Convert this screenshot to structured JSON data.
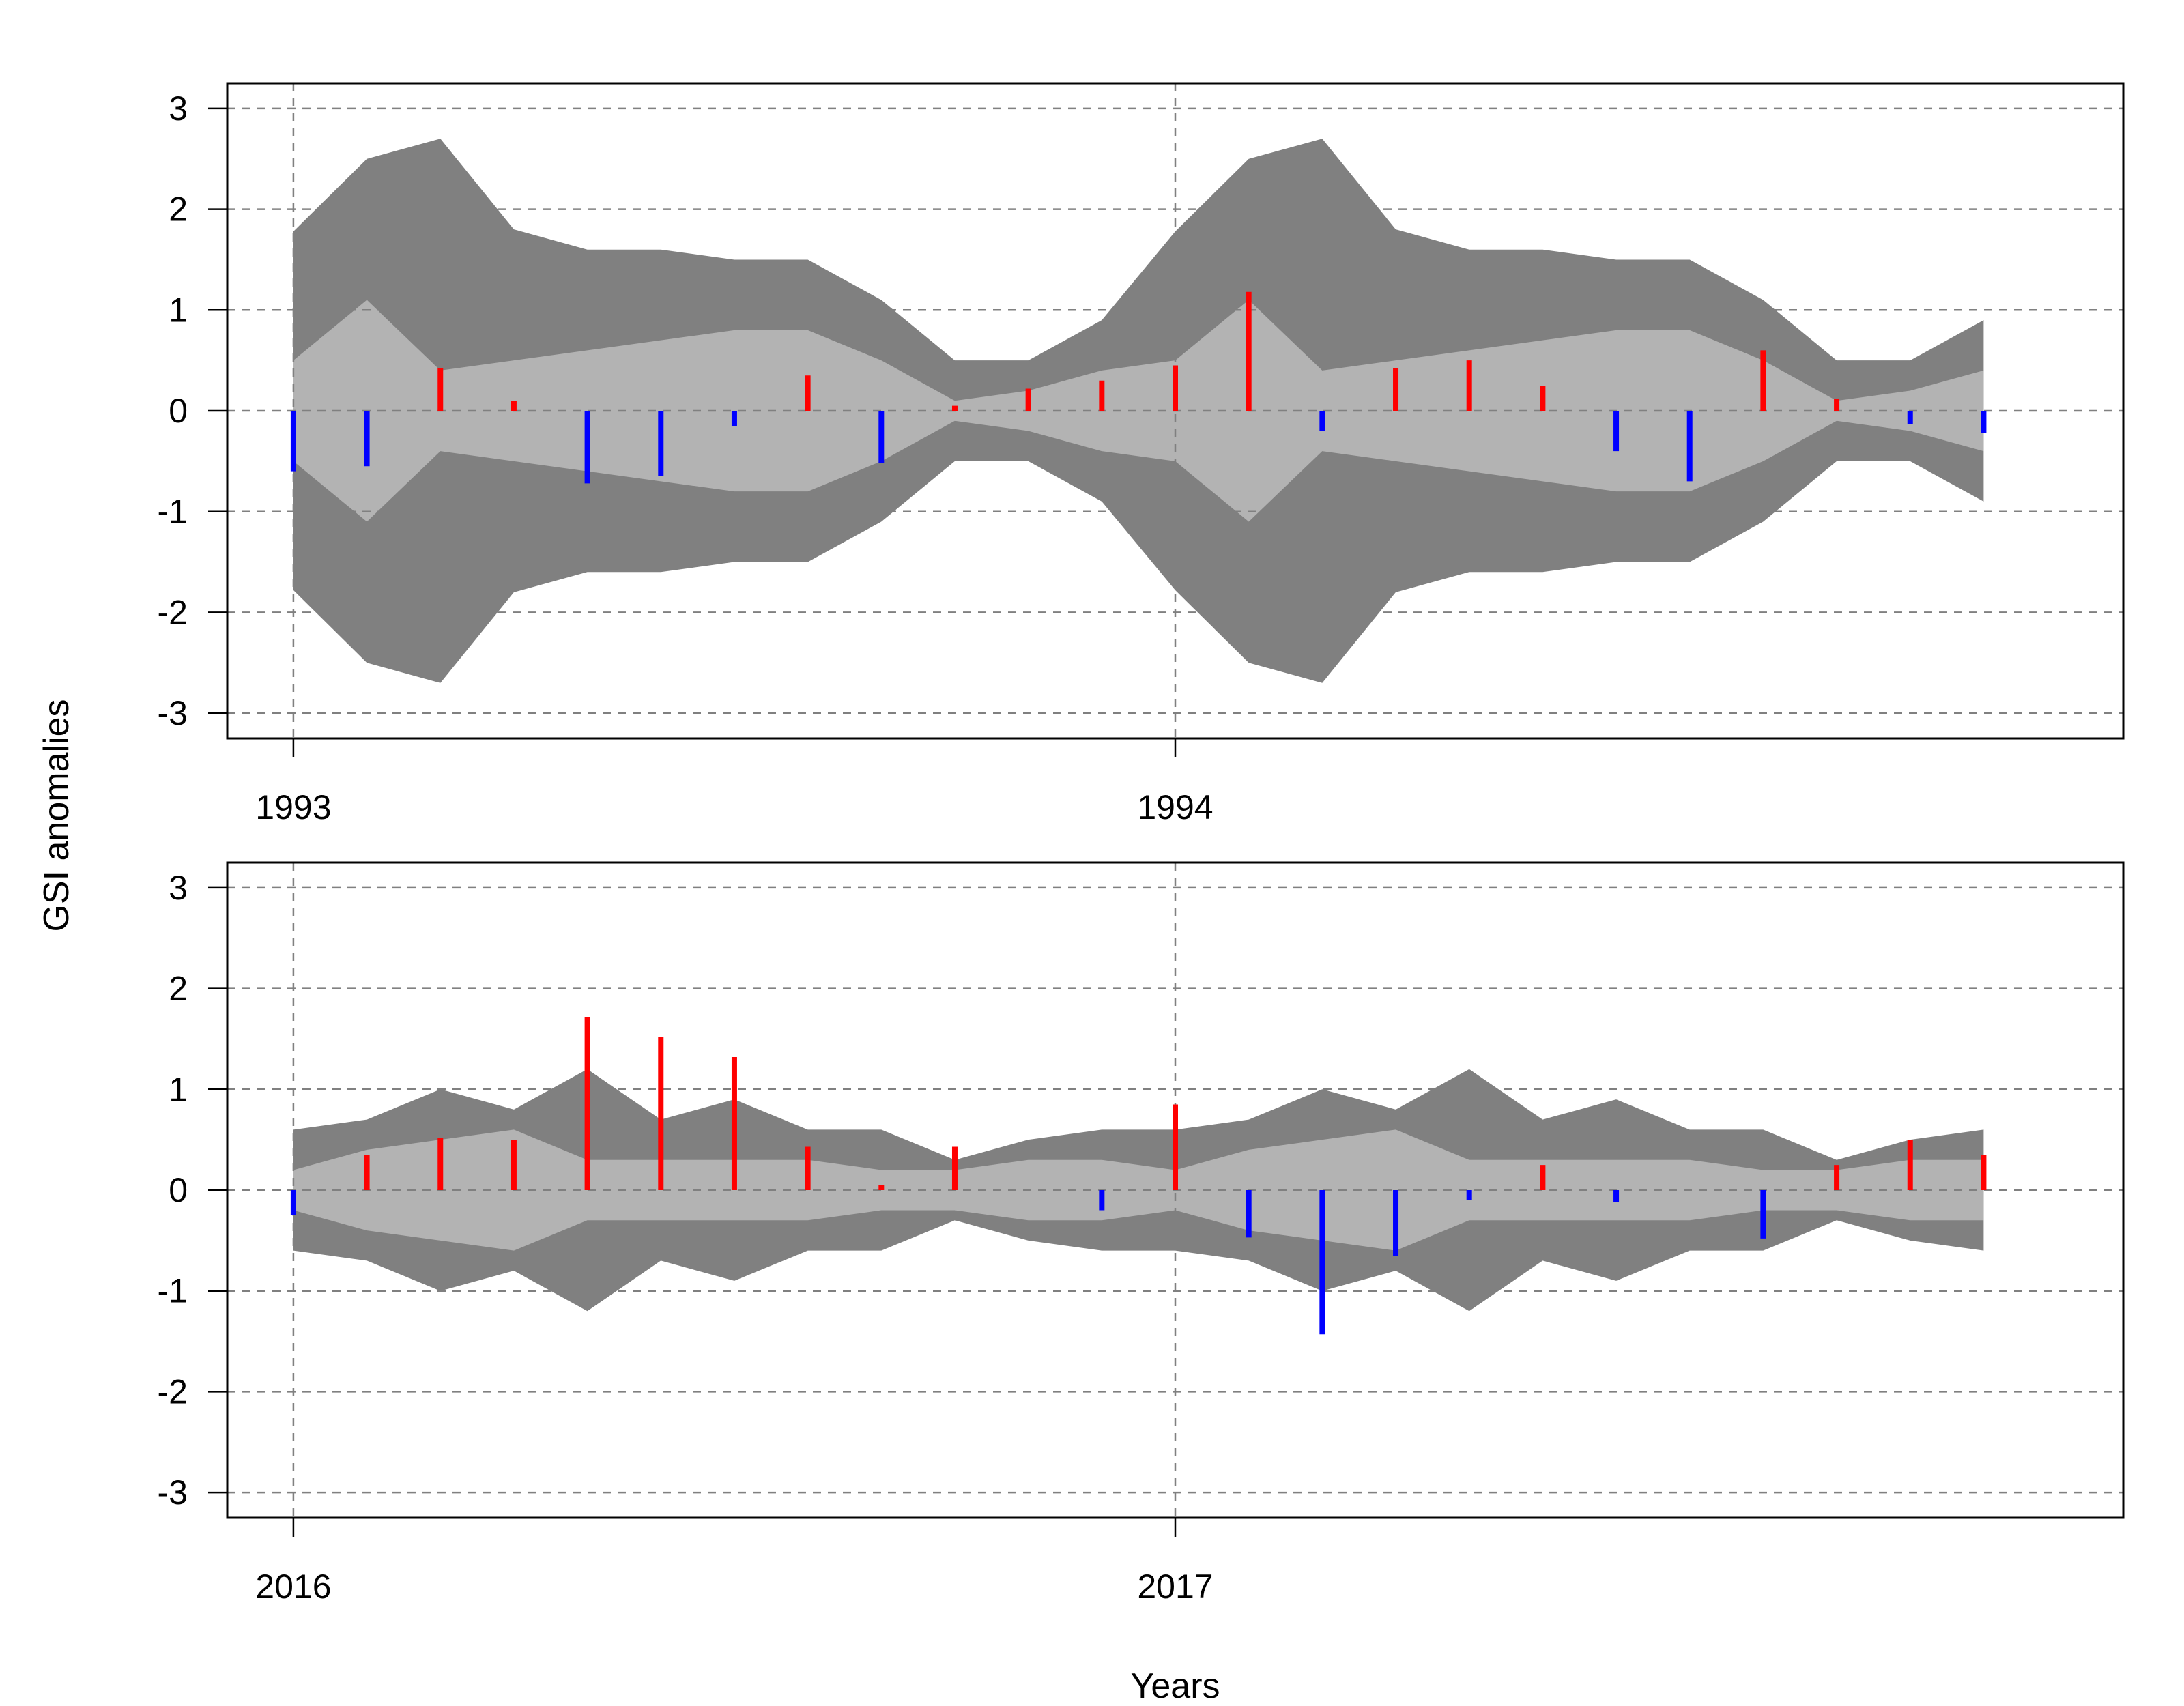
{
  "chart_data": {
    "type": "bar",
    "ylabel": "GSI anomalies",
    "xlabel": "Years",
    "ylim": [
      -3.25,
      3.25
    ],
    "y_ticks": [
      -3,
      -2,
      -1,
      0,
      1,
      2,
      3
    ],
    "grid": true,
    "colors": {
      "positive": "#ff0000",
      "negative": "#0000ff",
      "outer_band": "#808080",
      "inner_band": "#b3b3b3",
      "grid": "#808080"
    },
    "panels": [
      {
        "year_labels": [
          {
            "label": "1993",
            "index": 0
          },
          {
            "label": "1994",
            "index": 12
          }
        ],
        "x_range": [
          -0.9,
          24.9
        ],
        "outer_band": [
          1.78,
          2.5,
          2.7,
          1.8,
          1.6,
          1.6,
          1.5,
          1.5,
          1.1,
          0.5,
          0.5,
          0.9,
          1.78,
          2.5,
          2.7,
          1.8,
          1.6,
          1.6,
          1.5,
          1.5,
          1.1,
          0.5,
          0.5,
          0.9
        ],
        "inner_band": [
          0.5,
          1.1,
          0.4,
          0.5,
          0.6,
          0.7,
          0.8,
          0.8,
          0.5,
          0.1,
          0.2,
          0.4,
          0.5,
          1.1,
          0.4,
          0.5,
          0.6,
          0.7,
          0.8,
          0.8,
          0.5,
          0.1,
          0.2,
          0.4
        ],
        "values": [
          -0.6,
          -0.55,
          0.42,
          0.1,
          -0.72,
          -0.65,
          -0.15,
          0.35,
          -0.52,
          0.05,
          0.22,
          0.3,
          0.45,
          1.18,
          -0.2,
          0.42,
          0.5,
          0.25,
          -0.4,
          -0.7,
          0.6,
          0.12,
          -0.13,
          -0.22
        ]
      },
      {
        "year_labels": [
          {
            "label": "2016",
            "index": 0
          },
          {
            "label": "2017",
            "index": 12
          }
        ],
        "x_range": [
          -0.9,
          24.9
        ],
        "outer_band": [
          0.6,
          0.7,
          1.0,
          0.8,
          1.2,
          0.7,
          0.9,
          0.6,
          0.6,
          0.3,
          0.5,
          0.6,
          0.6,
          0.7,
          1.0,
          0.8,
          1.2,
          0.7,
          0.9,
          0.6,
          0.6,
          0.3,
          0.5,
          0.6
        ],
        "inner_band": [
          0.2,
          0.4,
          0.5,
          0.6,
          0.3,
          0.3,
          0.3,
          0.3,
          0.2,
          0.2,
          0.3,
          0.3,
          0.2,
          0.4,
          0.5,
          0.6,
          0.3,
          0.3,
          0.3,
          0.3,
          0.2,
          0.2,
          0.3,
          0.3
        ],
        "values": [
          -0.25,
          0.35,
          0.52,
          0.5,
          1.72,
          1.52,
          1.32,
          0.43,
          0.05,
          0.43,
          0.0,
          -0.2,
          0.85,
          -0.47,
          -1.43,
          -0.65,
          -0.1,
          0.25,
          -0.12,
          0.0,
          -0.48,
          0.25,
          0.5,
          0.35
        ]
      }
    ]
  }
}
